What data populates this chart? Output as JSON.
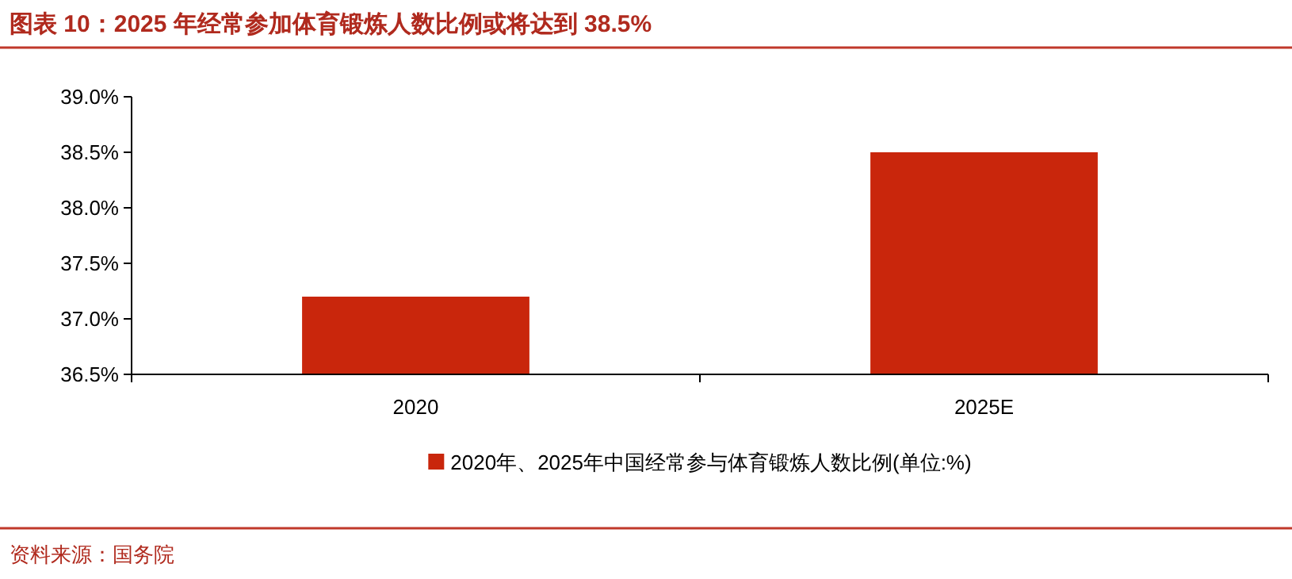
{
  "chart_data": {
    "type": "bar",
    "title": "图表 10：2025 年经常参加体育锻炼人数比例或将达到 38.5%",
    "categories": [
      "2020",
      "2025E"
    ],
    "series": [
      {
        "name": "2020年、2025年中国经常参与体育锻炼人数比例(单位:%)",
        "color": "#c9260c",
        "values": [
          37.2,
          38.5
        ]
      }
    ],
    "ylim": [
      36.5,
      39.0
    ],
    "yticks": [
      {
        "value": 36.5,
        "label": "36.5%"
      },
      {
        "value": 37.0,
        "label": "37.0%"
      },
      {
        "value": 37.5,
        "label": "37.5%"
      },
      {
        "value": 38.0,
        "label": "38.0%"
      },
      {
        "value": 38.5,
        "label": "38.5%"
      },
      {
        "value": 39.0,
        "label": "39.0%"
      }
    ],
    "grid": false,
    "legend": "bottom",
    "annotations": [
      "资料来源：国务院"
    ]
  }
}
